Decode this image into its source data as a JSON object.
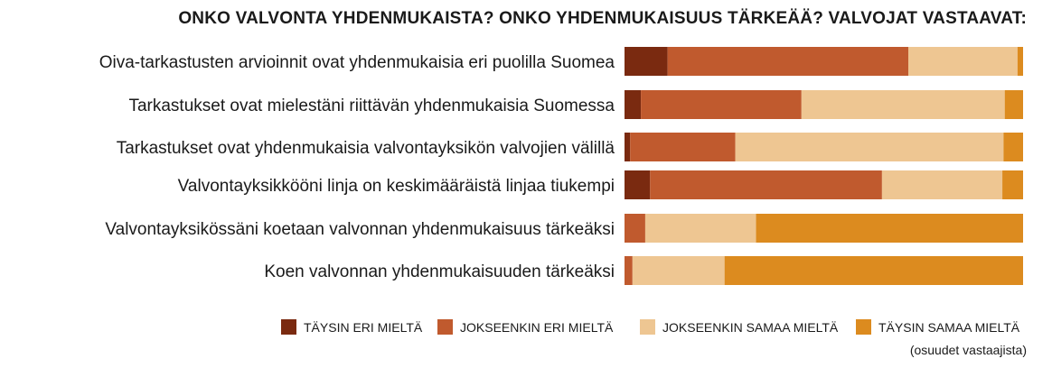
{
  "chart_data": {
    "type": "bar",
    "stacked": true,
    "orientation": "horizontal",
    "title": "ONKO VALVONTA YHDENMUKAISTA? ONKO YHDENMUKAISUUS TÄRKEÄÄ? VALVOJAT VASTAAVAT:",
    "categories": [
      "Oiva-tarkastusten arvioinnit ovat yhdenmukaisia eri puolilla Suomea",
      "Tarkastukset ovat mielestäni riittävän yhdenmukaisia Suomessa",
      "Tarkastukset ovat yhdenmukaisia valvontayksikön valvojien välillä",
      "Valvontayksikkööni linja on keskimääräistä linjaa tiukempi",
      "Valvontayksikössäni koetaan valvonnan yhdenmukaisuus tärkeäksi",
      "Koen valvonnan yhdenmukaisuuden tärkeäksi"
    ],
    "series": [
      {
        "name": "TÄYSIN ERI MIELTÄ",
        "color": "#7a2a10",
        "values": [
          10.8,
          4.1,
          1.4,
          6.4,
          0.0,
          0.0
        ]
      },
      {
        "name": "JOKSEENKIN ERI MIELTÄ",
        "color": "#c05a2e",
        "values": [
          60.4,
          40.3,
          26.4,
          58.2,
          5.2,
          2.0
        ]
      },
      {
        "name": "JOKSEENKIN SAMAA MIELTÄ",
        "color": "#eec692",
        "values": [
          27.4,
          51.0,
          67.3,
          30.2,
          27.8,
          23.1
        ]
      },
      {
        "name": "TÄYSIN SAMAA MIELTÄ",
        "color": "#dc8b1f",
        "values": [
          1.4,
          4.6,
          4.9,
          5.2,
          67.0,
          74.9
        ]
      }
    ],
    "xlim": [
      0,
      100
    ],
    "legend_position": "bottom-right",
    "note": "(osuudet vastaajista)"
  }
}
